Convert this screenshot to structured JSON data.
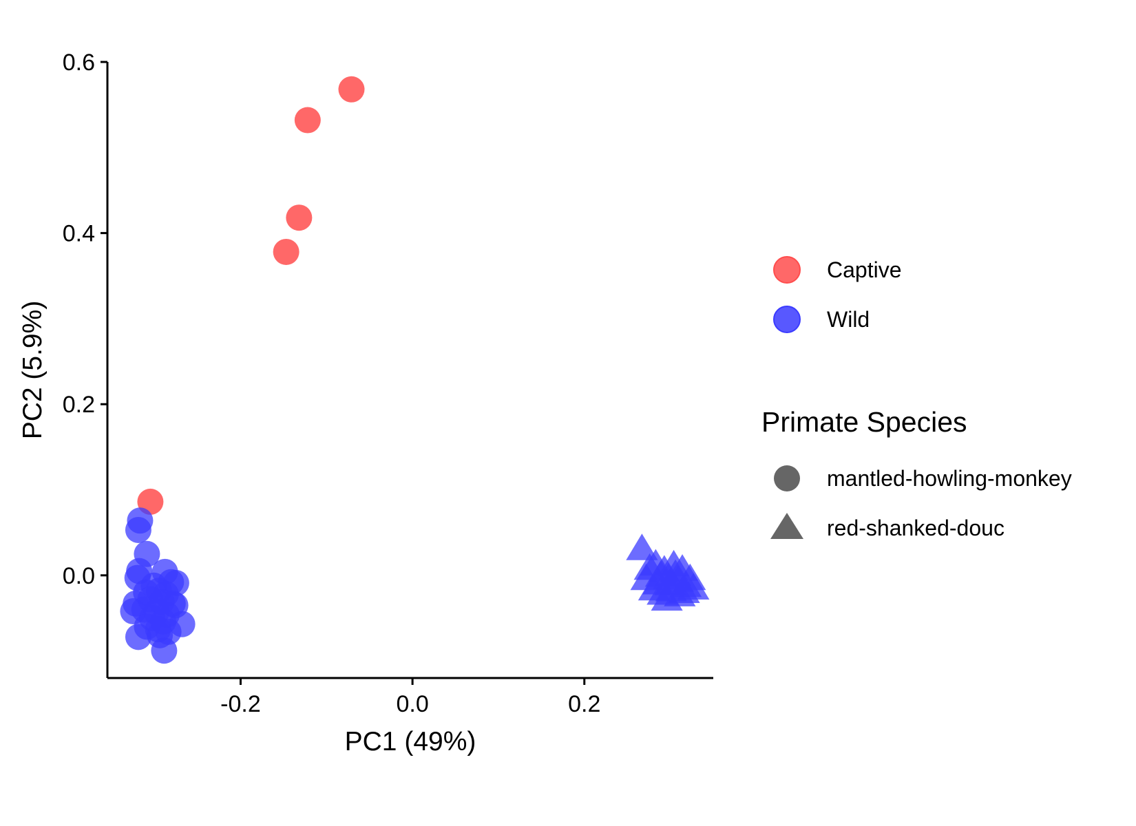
{
  "chart_data": {
    "type": "scatter",
    "title": "",
    "xlabel": "PC1 (49%)",
    "ylabel": "PC2 (5.9%)",
    "xlim": [
      -0.355,
      0.35
    ],
    "ylim": [
      -0.12,
      0.6
    ],
    "x_ticks": [
      -0.2,
      0.0,
      0.2
    ],
    "x_tick_labels": [
      "-0.2",
      "0.0",
      "0.2"
    ],
    "y_ticks": [
      0.0,
      0.2,
      0.4,
      0.6
    ],
    "y_tick_labels": [
      "0.0",
      "0.2",
      "0.4",
      "0.6"
    ],
    "grid": false,
    "legend_position": "right",
    "colors": {
      "Captive": "#ff4d4d",
      "Wild": "#3b3bff",
      "shape_key": "#666666"
    },
    "color_legend": {
      "title": "",
      "entries": [
        "Captive",
        "Wild"
      ]
    },
    "shape_legend": {
      "title": "Primate Species",
      "entries": [
        {
          "label": "mantled-howling-monkey",
          "shape": "circle"
        },
        {
          "label": "red-shanked-douc",
          "shape": "triangle"
        }
      ]
    },
    "points": [
      {
        "x": -0.071,
        "y": 0.568,
        "group": "Captive",
        "species": "mantled-howling-monkey"
      },
      {
        "x": -0.122,
        "y": 0.532,
        "group": "Captive",
        "species": "mantled-howling-monkey"
      },
      {
        "x": -0.132,
        "y": 0.418,
        "group": "Captive",
        "species": "mantled-howling-monkey"
      },
      {
        "x": -0.147,
        "y": 0.378,
        "group": "Captive",
        "species": "mantled-howling-monkey"
      },
      {
        "x": -0.305,
        "y": 0.086,
        "group": "Captive",
        "species": "mantled-howling-monkey"
      },
      {
        "x": -0.317,
        "y": 0.064,
        "group": "Wild",
        "species": "mantled-howling-monkey"
      },
      {
        "x": -0.319,
        "y": 0.053,
        "group": "Wild",
        "species": "mantled-howling-monkey"
      },
      {
        "x": -0.309,
        "y": 0.025,
        "group": "Wild",
        "species": "mantled-howling-monkey"
      },
      {
        "x": -0.318,
        "y": 0.005,
        "group": "Wild",
        "species": "mantled-howling-monkey"
      },
      {
        "x": -0.32,
        "y": -0.003,
        "group": "Wild",
        "species": "mantled-howling-monkey"
      },
      {
        "x": -0.288,
        "y": 0.004,
        "group": "Wild",
        "species": "mantled-howling-monkey"
      },
      {
        "x": -0.281,
        "y": -0.008,
        "group": "Wild",
        "species": "mantled-howling-monkey"
      },
      {
        "x": -0.275,
        "y": -0.009,
        "group": "Wild",
        "species": "mantled-howling-monkey"
      },
      {
        "x": -0.301,
        "y": -0.012,
        "group": "Wild",
        "species": "mantled-howling-monkey"
      },
      {
        "x": -0.295,
        "y": -0.018,
        "group": "Wild",
        "species": "mantled-howling-monkey"
      },
      {
        "x": -0.31,
        "y": -0.02,
        "group": "Wild",
        "species": "mantled-howling-monkey"
      },
      {
        "x": -0.287,
        "y": -0.022,
        "group": "Wild",
        "species": "mantled-howling-monkey"
      },
      {
        "x": -0.305,
        "y": -0.028,
        "group": "Wild",
        "species": "mantled-howling-monkey"
      },
      {
        "x": -0.292,
        "y": -0.031,
        "group": "Wild",
        "species": "mantled-howling-monkey"
      },
      {
        "x": -0.279,
        "y": -0.033,
        "group": "Wild",
        "species": "mantled-howling-monkey"
      },
      {
        "x": -0.276,
        "y": -0.035,
        "group": "Wild",
        "species": "mantled-howling-monkey"
      },
      {
        "x": -0.322,
        "y": -0.033,
        "group": "Wild",
        "species": "mantled-howling-monkey"
      },
      {
        "x": -0.325,
        "y": -0.042,
        "group": "Wild",
        "species": "mantled-howling-monkey"
      },
      {
        "x": -0.312,
        "y": -0.04,
        "group": "Wild",
        "species": "mantled-howling-monkey"
      },
      {
        "x": -0.298,
        "y": -0.043,
        "group": "Wild",
        "species": "mantled-howling-monkey"
      },
      {
        "x": -0.286,
        "y": -0.046,
        "group": "Wild",
        "species": "mantled-howling-monkey"
      },
      {
        "x": -0.303,
        "y": -0.05,
        "group": "Wild",
        "species": "mantled-howling-monkey"
      },
      {
        "x": -0.29,
        "y": -0.054,
        "group": "Wild",
        "species": "mantled-howling-monkey"
      },
      {
        "x": -0.268,
        "y": -0.057,
        "group": "Wild",
        "species": "mantled-howling-monkey"
      },
      {
        "x": -0.309,
        "y": -0.06,
        "group": "Wild",
        "species": "mantled-howling-monkey"
      },
      {
        "x": -0.296,
        "y": -0.063,
        "group": "Wild",
        "species": "mantled-howling-monkey"
      },
      {
        "x": -0.284,
        "y": -0.066,
        "group": "Wild",
        "species": "mantled-howling-monkey"
      },
      {
        "x": -0.319,
        "y": -0.072,
        "group": "Wild",
        "species": "mantled-howling-monkey"
      },
      {
        "x": -0.294,
        "y": -0.07,
        "group": "Wild",
        "species": "mantled-howling-monkey"
      },
      {
        "x": -0.289,
        "y": -0.088,
        "group": "Wild",
        "species": "mantled-howling-monkey"
      },
      {
        "x": 0.267,
        "y": 0.031,
        "group": "Wild",
        "species": "red-shanked-douc"
      },
      {
        "x": 0.276,
        "y": 0.008,
        "group": "Wild",
        "species": "red-shanked-douc"
      },
      {
        "x": 0.283,
        "y": 0.013,
        "group": "Wild",
        "species": "red-shanked-douc"
      },
      {
        "x": 0.272,
        "y": -0.004,
        "group": "Wild",
        "species": "red-shanked-douc"
      },
      {
        "x": 0.286,
        "y": -0.009,
        "group": "Wild",
        "species": "red-shanked-douc"
      },
      {
        "x": 0.293,
        "y": 0.006,
        "group": "Wild",
        "species": "red-shanked-douc"
      },
      {
        "x": 0.298,
        "y": -0.003,
        "group": "Wild",
        "species": "red-shanked-douc"
      },
      {
        "x": 0.304,
        "y": 0.012,
        "group": "Wild",
        "species": "red-shanked-douc"
      },
      {
        "x": 0.309,
        "y": -0.006,
        "group": "Wild",
        "species": "red-shanked-douc"
      },
      {
        "x": 0.314,
        "y": 0.007,
        "group": "Wild",
        "species": "red-shanked-douc"
      },
      {
        "x": 0.318,
        "y": -0.012,
        "group": "Wild",
        "species": "red-shanked-douc"
      },
      {
        "x": 0.323,
        "y": -0.004,
        "group": "Wild",
        "species": "red-shanked-douc"
      },
      {
        "x": 0.281,
        "y": -0.016,
        "group": "Wild",
        "species": "red-shanked-douc"
      },
      {
        "x": 0.291,
        "y": -0.021,
        "group": "Wild",
        "species": "red-shanked-douc"
      },
      {
        "x": 0.301,
        "y": -0.017,
        "group": "Wild",
        "species": "red-shanked-douc"
      },
      {
        "x": 0.311,
        "y": -0.023,
        "group": "Wild",
        "species": "red-shanked-douc"
      },
      {
        "x": 0.296,
        "y": -0.028,
        "group": "Wild",
        "species": "red-shanked-douc"
      },
      {
        "x": 0.306,
        "y": 0.001,
        "group": "Wild",
        "species": "red-shanked-douc"
      },
      {
        "x": 0.289,
        "y": 0.0,
        "group": "Wild",
        "species": "red-shanked-douc"
      },
      {
        "x": 0.316,
        "y": -0.019,
        "group": "Wild",
        "species": "red-shanked-douc"
      },
      {
        "x": 0.327,
        "y": -0.015,
        "group": "Wild",
        "species": "red-shanked-douc"
      },
      {
        "x": 0.3,
        "y": -0.01,
        "group": "Wild",
        "species": "red-shanked-douc"
      }
    ]
  }
}
